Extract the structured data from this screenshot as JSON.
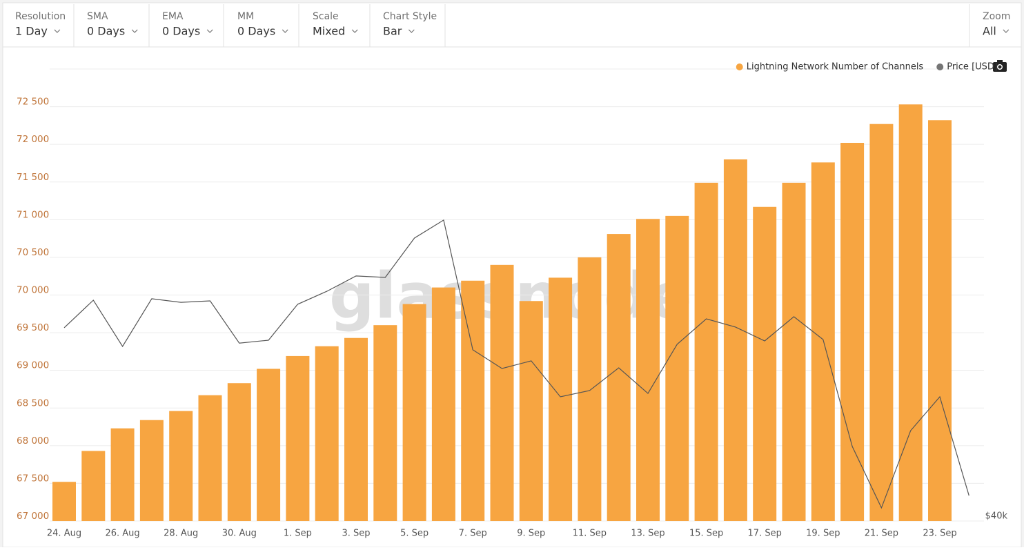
{
  "controls": [
    {
      "label": "Resolution",
      "value": "1 Day"
    },
    {
      "label": "SMA",
      "value": "0 Days"
    },
    {
      "label": "EMA",
      "value": "0 Days"
    },
    {
      "label": "MM",
      "value": "0 Days"
    },
    {
      "label": "Scale",
      "value": "Mixed"
    },
    {
      "label": "Chart Style",
      "value": "Bar"
    }
  ],
  "zoom": {
    "label": "Zoom",
    "value": "All"
  },
  "chart_data": {
    "type": "bar",
    "watermark": "glassnode",
    "categories": [
      "24. Aug",
      null,
      "26. Aug",
      null,
      "28. Aug",
      null,
      "30. Aug",
      null,
      "1. Sep",
      null,
      "3. Sep",
      null,
      "5. Sep",
      null,
      "7. Sep",
      null,
      "9. Sep",
      null,
      "11. Sep",
      null,
      "13. Sep",
      null,
      "15. Sep",
      null,
      "17. Sep",
      null,
      "19. Sep",
      null,
      "21. Sep",
      null,
      "23. Sep",
      null
    ],
    "series": [
      {
        "name": "Lightning Network Number of Channels",
        "color": "#f7a541",
        "type": "bar",
        "values": [
          67520,
          67930,
          68230,
          68340,
          68460,
          68670,
          68830,
          69020,
          69190,
          69320,
          69430,
          69600,
          69880,
          70100,
          70190,
          70400,
          69920,
          70230,
          70500,
          70810,
          71010,
          71050,
          71490,
          71800,
          71170,
          71490,
          71760,
          72020,
          72270,
          72530,
          72320,
          null
        ]
      },
      {
        "name": "Price [USD]",
        "color": "#757575",
        "type": "line",
        "axis": "y2",
        "values": [
          48060,
          49210,
          47280,
          49270,
          49120,
          49180,
          47420,
          47540,
          49040,
          49580,
          50220,
          50160,
          51800,
          52550,
          47140,
          46360,
          46680,
          45180,
          45440,
          46390,
          45320,
          47370,
          48430,
          48090,
          47510,
          48520,
          47570,
          43110,
          40550,
          43770,
          45180,
          41060
        ]
      }
    ],
    "ylim": [
      67000,
      73000
    ],
    "yticks": [
      {
        "value": 67000,
        "label": "67 000"
      },
      {
        "value": 67500,
        "label": "67 500"
      },
      {
        "value": 68000,
        "label": "68 000"
      },
      {
        "value": 68500,
        "label": "68 500"
      },
      {
        "value": 69000,
        "label": "69 000"
      },
      {
        "value": 69500,
        "label": "69 500"
      },
      {
        "value": 70000,
        "label": "70 000"
      },
      {
        "value": 70500,
        "label": "70 500"
      },
      {
        "value": 71000,
        "label": "71 000"
      },
      {
        "value": 71500,
        "label": "71 500"
      },
      {
        "value": 72000,
        "label": "72 000"
      },
      {
        "value": 72500,
        "label": "72 500"
      }
    ],
    "y2lim": [
      40000,
      58850
    ],
    "y2ticks": [
      {
        "value": 40000,
        "label": "$40k"
      }
    ],
    "grid": true,
    "legend": "top-right"
  }
}
